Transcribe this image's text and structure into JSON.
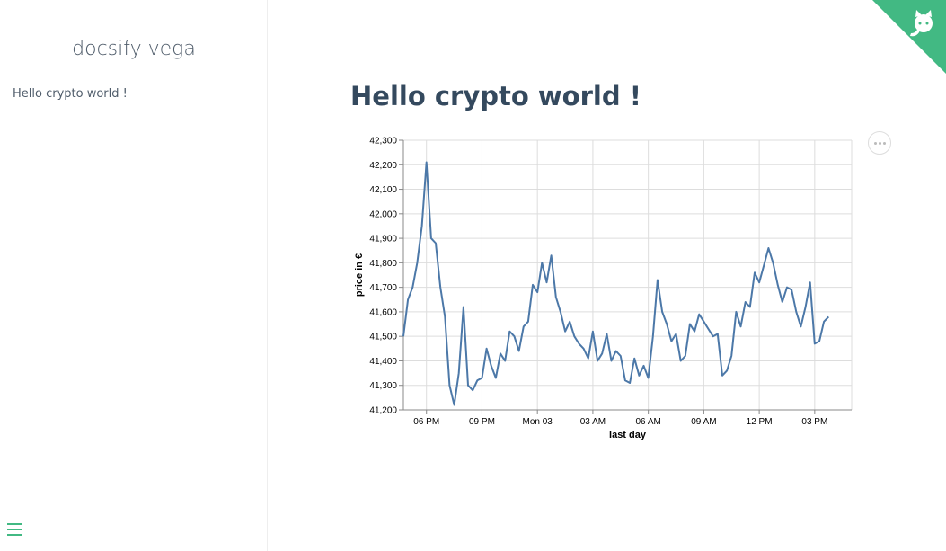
{
  "sidebar": {
    "app_name": "docsify vega",
    "nav": [
      {
        "label": "Hello crypto world !"
      }
    ],
    "toggle_icon": "hamburger-menu-icon"
  },
  "main": {
    "title": "Hello crypto world !",
    "actions_icon": "ellipsis-icon"
  },
  "github_corner": {
    "icon": "github-octocat-icon",
    "color": "#42b983"
  },
  "chart_data": {
    "type": "line",
    "xlabel": "last day",
    "ylabel": "price in €",
    "ylim": [
      41200,
      42300
    ],
    "y_ticks": [
      41200,
      41300,
      41400,
      41500,
      41600,
      41700,
      41800,
      41900,
      42000,
      42100,
      42200,
      42300
    ],
    "y_tick_labels": [
      "41,200",
      "41,300",
      "41,400",
      "41,500",
      "41,600",
      "41,700",
      "41,800",
      "41,900",
      "42,000",
      "42,100",
      "42,200",
      "42,300"
    ],
    "xlim": [
      "2022-01-02 16:45",
      "2022-01-03 17:00"
    ],
    "x_ticks": [
      {
        "t": "2022-01-02 18:00",
        "label": "06 PM"
      },
      {
        "t": "2022-01-02 21:00",
        "label": "09 PM"
      },
      {
        "t": "2022-01-03 00:00",
        "label": "Mon 03"
      },
      {
        "t": "2022-01-03 03:00",
        "label": "03 AM"
      },
      {
        "t": "2022-01-03 06:00",
        "label": "06 AM"
      },
      {
        "t": "2022-01-03 09:00",
        "label": "09 AM"
      },
      {
        "t": "2022-01-03 12:00",
        "label": "12 PM"
      },
      {
        "t": "2022-01-03 15:00",
        "label": "03 PM"
      }
    ],
    "grid": true,
    "color": "#4c78a8",
    "points": [
      [
        "2022-01-02 16:45",
        41500
      ],
      [
        "2022-01-02 17:00",
        41650
      ],
      [
        "2022-01-02 17:15",
        41700
      ],
      [
        "2022-01-02 17:30",
        41800
      ],
      [
        "2022-01-02 17:45",
        41950
      ],
      [
        "2022-01-02 18:00",
        42210
      ],
      [
        "2022-01-02 18:15",
        41900
      ],
      [
        "2022-01-02 18:30",
        41880
      ],
      [
        "2022-01-02 18:45",
        41700
      ],
      [
        "2022-01-02 19:00",
        41580
      ],
      [
        "2022-01-02 19:15",
        41300
      ],
      [
        "2022-01-02 19:30",
        41220
      ],
      [
        "2022-01-02 19:45",
        41350
      ],
      [
        "2022-01-02 20:00",
        41620
      ],
      [
        "2022-01-02 20:15",
        41300
      ],
      [
        "2022-01-02 20:30",
        41280
      ],
      [
        "2022-01-02 20:45",
        41320
      ],
      [
        "2022-01-02 21:00",
        41330
      ],
      [
        "2022-01-02 21:15",
        41450
      ],
      [
        "2022-01-02 21:30",
        41380
      ],
      [
        "2022-01-02 21:45",
        41330
      ],
      [
        "2022-01-02 22:00",
        41430
      ],
      [
        "2022-01-02 22:15",
        41400
      ],
      [
        "2022-01-02 22:30",
        41520
      ],
      [
        "2022-01-02 22:45",
        41500
      ],
      [
        "2022-01-02 23:00",
        41440
      ],
      [
        "2022-01-02 23:15",
        41540
      ],
      [
        "2022-01-02 23:30",
        41560
      ],
      [
        "2022-01-02 23:45",
        41710
      ],
      [
        "2022-01-03 00:00",
        41680
      ],
      [
        "2022-01-03 00:15",
        41800
      ],
      [
        "2022-01-03 00:30",
        41720
      ],
      [
        "2022-01-03 00:45",
        41830
      ],
      [
        "2022-01-03 01:00",
        41660
      ],
      [
        "2022-01-03 01:15",
        41600
      ],
      [
        "2022-01-03 01:30",
        41520
      ],
      [
        "2022-01-03 01:45",
        41560
      ],
      [
        "2022-01-03 02:00",
        41500
      ],
      [
        "2022-01-03 02:15",
        41470
      ],
      [
        "2022-01-03 02:30",
        41450
      ],
      [
        "2022-01-03 02:45",
        41410
      ],
      [
        "2022-01-03 03:00",
        41520
      ],
      [
        "2022-01-03 03:15",
        41400
      ],
      [
        "2022-01-03 03:30",
        41430
      ],
      [
        "2022-01-03 03:45",
        41510
      ],
      [
        "2022-01-03 04:00",
        41400
      ],
      [
        "2022-01-03 04:15",
        41440
      ],
      [
        "2022-01-03 04:30",
        41420
      ],
      [
        "2022-01-03 04:45",
        41320
      ],
      [
        "2022-01-03 05:00",
        41310
      ],
      [
        "2022-01-03 05:15",
        41410
      ],
      [
        "2022-01-03 05:30",
        41340
      ],
      [
        "2022-01-03 05:45",
        41380
      ],
      [
        "2022-01-03 06:00",
        41330
      ],
      [
        "2022-01-03 06:15",
        41500
      ],
      [
        "2022-01-03 06:30",
        41730
      ],
      [
        "2022-01-03 06:45",
        41600
      ],
      [
        "2022-01-03 07:00",
        41550
      ],
      [
        "2022-01-03 07:15",
        41480
      ],
      [
        "2022-01-03 07:30",
        41510
      ],
      [
        "2022-01-03 07:45",
        41400
      ],
      [
        "2022-01-03 08:00",
        41420
      ],
      [
        "2022-01-03 08:15",
        41550
      ],
      [
        "2022-01-03 08:30",
        41520
      ],
      [
        "2022-01-03 08:45",
        41590
      ],
      [
        "2022-01-03 09:00",
        41560
      ],
      [
        "2022-01-03 09:15",
        41530
      ],
      [
        "2022-01-03 09:30",
        41500
      ],
      [
        "2022-01-03 09:45",
        41510
      ],
      [
        "2022-01-03 10:00",
        41340
      ],
      [
        "2022-01-03 10:15",
        41360
      ],
      [
        "2022-01-03 10:30",
        41420
      ],
      [
        "2022-01-03 10:45",
        41600
      ],
      [
        "2022-01-03 11:00",
        41540
      ],
      [
        "2022-01-03 11:15",
        41640
      ],
      [
        "2022-01-03 11:30",
        41620
      ],
      [
        "2022-01-03 11:45",
        41760
      ],
      [
        "2022-01-03 12:00",
        41720
      ],
      [
        "2022-01-03 12:15",
        41790
      ],
      [
        "2022-01-03 12:30",
        41860
      ],
      [
        "2022-01-03 12:45",
        41800
      ],
      [
        "2022-01-03 13:00",
        41710
      ],
      [
        "2022-01-03 13:15",
        41640
      ],
      [
        "2022-01-03 13:30",
        41700
      ],
      [
        "2022-01-03 13:45",
        41690
      ],
      [
        "2022-01-03 14:00",
        41600
      ],
      [
        "2022-01-03 14:15",
        41540
      ],
      [
        "2022-01-03 14:30",
        41620
      ],
      [
        "2022-01-03 14:45",
        41720
      ],
      [
        "2022-01-03 15:00",
        41470
      ],
      [
        "2022-01-03 15:15",
        41480
      ],
      [
        "2022-01-03 15:30",
        41560
      ],
      [
        "2022-01-03 15:45",
        41580
      ]
    ]
  }
}
